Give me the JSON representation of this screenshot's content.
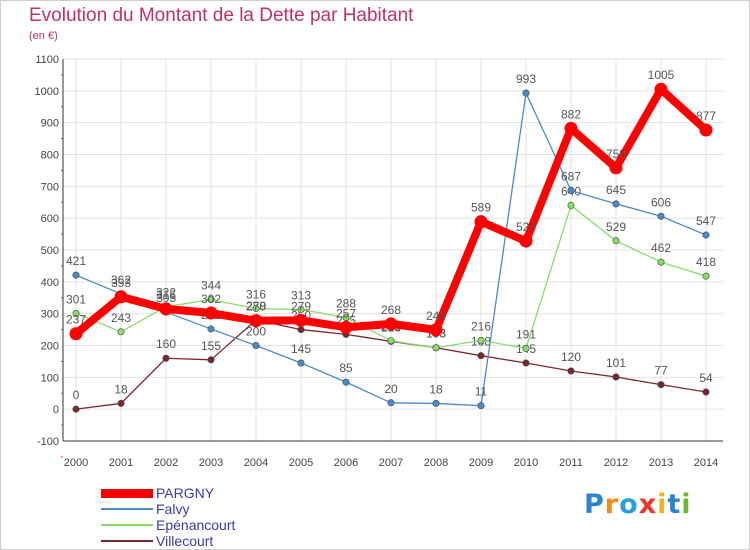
{
  "chart_data": {
    "type": "line",
    "title": "Evolution du Montant de la Dette par Habitant",
    "subtitle": "(en €)",
    "x": [
      "2000",
      "2001",
      "2002",
      "2003",
      "2004",
      "2005",
      "2006",
      "2007",
      "2008",
      "2009",
      "2010",
      "2011",
      "2012",
      "2013",
      "2014"
    ],
    "ylim": [
      -100,
      1100
    ],
    "yticks": [
      -100,
      0,
      100,
      200,
      300,
      400,
      500,
      600,
      700,
      800,
      900,
      1000,
      1100
    ],
    "grid": true,
    "legend_position": "bottom-left",
    "series": [
      {
        "name": "PARGNY",
        "color": "#ff0000",
        "values": [
          237,
          353,
          315,
          302,
          278,
          279,
          257,
          268,
          249,
          589,
          528,
          882,
          758,
          1005,
          877
        ]
      },
      {
        "name": "Falvy",
        "color": "#4a8bc8",
        "values": [
          421,
          362,
          305,
          252,
          200,
          145,
          85,
          20,
          18,
          11,
          993,
          687,
          645,
          606,
          547
        ]
      },
      {
        "name": "Epénancourt",
        "color": "#88dd66",
        "values": [
          301,
          243,
          322,
          344,
          316,
          313,
          288,
          215,
          193,
          216,
          191,
          640,
          529,
          462,
          418
        ]
      },
      {
        "name": "Villecourt",
        "color": "#7a2830",
        "values": [
          0,
          18,
          160,
          155,
          280,
          250,
          235,
          213,
          193,
          168,
          145,
          120,
          101,
          77,
          54
        ]
      }
    ]
  },
  "brand": {
    "name": "Proxiti",
    "letters": [
      {
        "ch": "P",
        "color": "#2a84d0"
      },
      {
        "ch": "r",
        "color": "#f08a1e"
      },
      {
        "ch": "o",
        "color": "#2aa0d8"
      },
      {
        "ch": "x",
        "color": "#e8382c"
      },
      {
        "ch": "i",
        "color": "#f2b41e"
      },
      {
        "ch": "t",
        "color": "#2a84d0"
      },
      {
        "ch": "i",
        "color": "#6ab832"
      }
    ]
  }
}
